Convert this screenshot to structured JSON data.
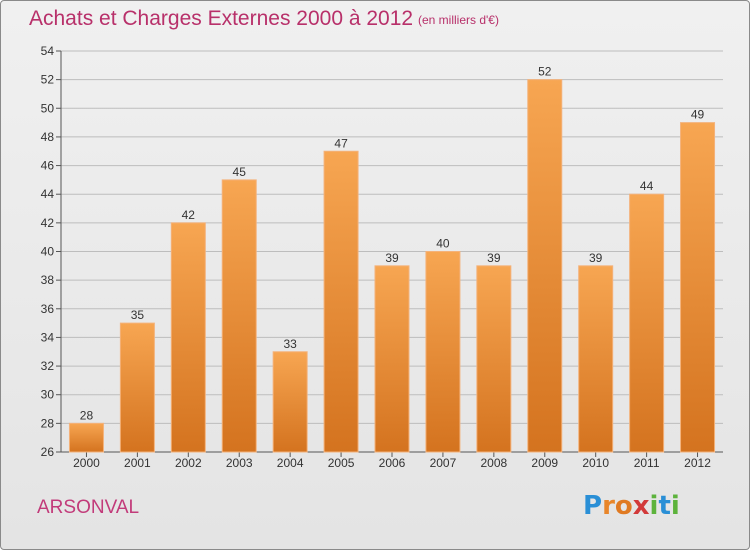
{
  "header": {
    "title": "Achats et Charges Externes 2000 à 2012",
    "subtitle": "(en milliers d'€)"
  },
  "footer": {
    "town": "ARSONVAL",
    "logo_text": "Proxiti"
  },
  "colors": {
    "bar_light": "#f7a652",
    "bar_dark": "#d4731f",
    "title": "#b8306a",
    "town": "#c23b7a",
    "grid": "#bdbdbd"
  },
  "chart_data": {
    "type": "bar",
    "title": "Achats et Charges Externes 2000 à 2012",
    "subtitle": "(en milliers d'€)",
    "xlabel": "",
    "ylabel": "",
    "categories": [
      "2000",
      "2001",
      "2002",
      "2003",
      "2004",
      "2005",
      "2006",
      "2007",
      "2008",
      "2009",
      "2010",
      "2011",
      "2012"
    ],
    "values": [
      28,
      35,
      42,
      45,
      33,
      47,
      39,
      40,
      39,
      52,
      39,
      44,
      49
    ],
    "ylim": [
      26,
      54
    ],
    "yticks": [
      26,
      28,
      30,
      32,
      34,
      36,
      38,
      40,
      42,
      44,
      46,
      48,
      50,
      52,
      54
    ],
    "grid": true,
    "data_labels": true
  }
}
